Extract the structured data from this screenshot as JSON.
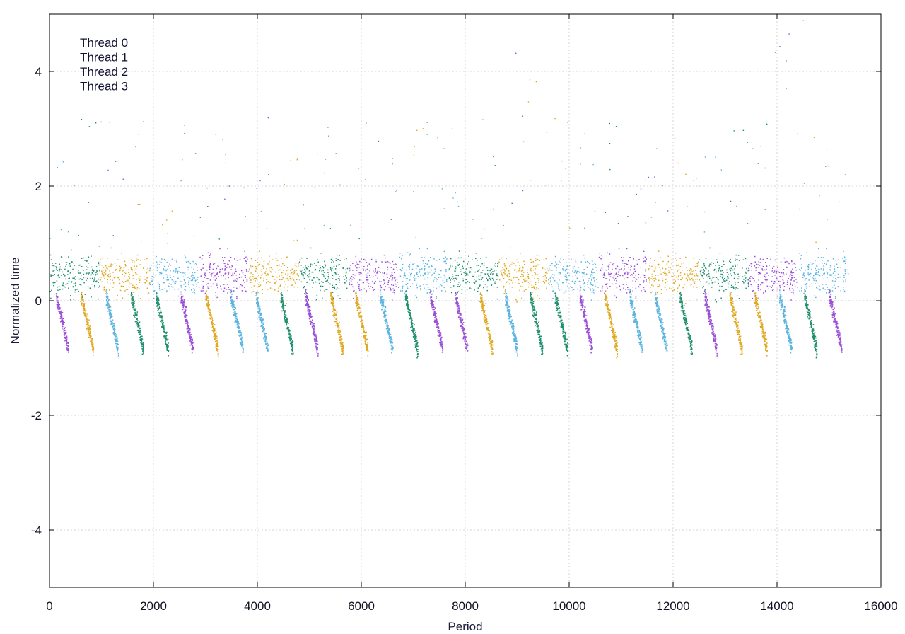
{
  "chart_data": {
    "type": "scatter",
    "title": "",
    "xlabel": "Period",
    "ylabel": "Normalized time",
    "xlim": [
      0,
      16000
    ],
    "ylim": [
      -5,
      5
    ],
    "x_ticks": [
      "0",
      "2000",
      "4000",
      "6000",
      "8000",
      "10000",
      "12000",
      "14000",
      "16000"
    ],
    "y_ticks": [
      "4",
      "2",
      "0",
      "-2",
      "-4"
    ],
    "grid": true,
    "legend_position": "top-left",
    "series": [
      {
        "name": "Thread 0",
        "color": "#9b4fd8"
      },
      {
        "name": "Thread 1",
        "color": "#1f8f6e"
      },
      {
        "name": "Thread 2",
        "color": "#5ab4e0"
      },
      {
        "name": "Thread 3",
        "color": "#e0a820"
      }
    ],
    "x_max_data": 15700,
    "baseline_low": -0.75,
    "baseline_high": 0.45,
    "sawtooth_period": 480
  }
}
